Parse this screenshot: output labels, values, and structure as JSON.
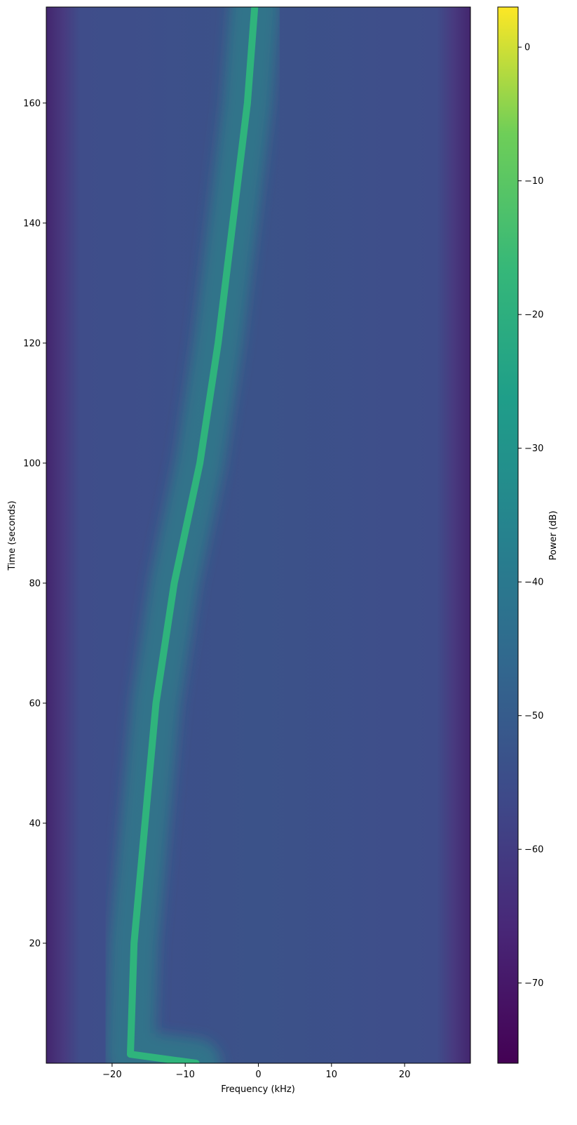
{
  "chart_data": {
    "type": "heatmap",
    "title": "",
    "xlabel": "Frequency (kHz)",
    "ylabel": "Time (seconds)",
    "xlim": [
      -29,
      29
    ],
    "ylim": [
      0,
      176
    ],
    "x_ticks": [
      -20,
      -10,
      0,
      10,
      20
    ],
    "x_tick_labels": [
      "−20",
      "−10",
      "0",
      "10",
      "20"
    ],
    "y_ticks": [
      20,
      40,
      60,
      80,
      100,
      120,
      140,
      160
    ],
    "y_tick_labels": [
      "20",
      "40",
      "60",
      "80",
      "100",
      "120",
      "140",
      "160"
    ],
    "grid": false,
    "colormap": "viridis",
    "colorbar": {
      "label": "Power (dB)",
      "range": [
        -76,
        3
      ],
      "ticks": [
        0,
        -10,
        -20,
        -30,
        -40,
        -50,
        -60,
        -70
      ],
      "tick_labels": [
        "0",
        "−10",
        "−20",
        "−30",
        "−40",
        "−50",
        "−60",
        "−70"
      ]
    },
    "background_level_db": -55,
    "edge_level_db": -70,
    "signal_track": {
      "name": "",
      "level_db": -25,
      "points": [
        {
          "t": 0,
          "f": -8.5
        },
        {
          "t": 1.5,
          "f": -17.5
        },
        {
          "t": 20,
          "f": -17
        },
        {
          "t": 40,
          "f": -15.5
        },
        {
          "t": 60,
          "f": -14
        },
        {
          "t": 80,
          "f": -11.5
        },
        {
          "t": 100,
          "f": -8
        },
        {
          "t": 120,
          "f": -5.5
        },
        {
          "t": 140,
          "f": -3.5
        },
        {
          "t": 160,
          "f": -1.5
        },
        {
          "t": 176,
          "f": -0.5
        }
      ]
    }
  }
}
